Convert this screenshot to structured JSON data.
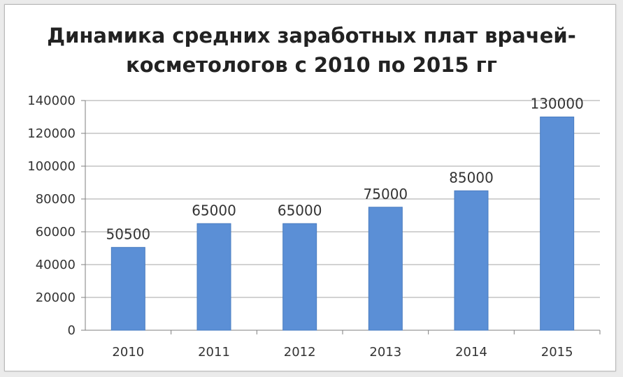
{
  "chart_data": {
    "type": "bar",
    "title": "Динамика средних заработных плат врачей-",
    "subtitle": "косметологов с 2010 по 2015 гг",
    "categories": [
      "2010",
      "2011",
      "2012",
      "2013",
      "2014",
      "2015"
    ],
    "values": [
      50500,
      65000,
      65000,
      75000,
      85000,
      130000
    ],
    "data_labels": [
      "50500",
      "65000",
      "65000",
      "75000",
      "85000",
      "130000"
    ],
    "y_ticks": [
      "0",
      "20000",
      "40000",
      "60000",
      "80000",
      "100000",
      "120000",
      "140000"
    ],
    "ylim": [
      0,
      140000
    ],
    "grid": true,
    "legend": "none",
    "colors": {
      "bar": "#5b8fd6",
      "bar_stroke": "#4a7cc0",
      "grid": "#a6a6a6",
      "axis": "#7f7f7f"
    }
  }
}
